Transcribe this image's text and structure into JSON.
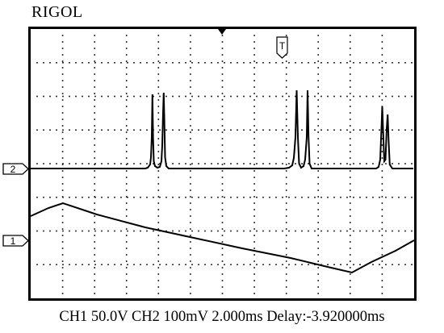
{
  "brand": "RIGOL",
  "channels": {
    "ch1_marker": "1",
    "ch2_marker": "2",
    "trigger_marker": "T"
  },
  "status": {
    "ch1_scale": "CH1 50.0V",
    "ch2_scale": "CH2 100mV",
    "timebase": "2.000ms",
    "delay": "Delay:-3.920000ms"
  },
  "colors": {
    "background": "#ffffff",
    "grid": "#000000",
    "trace": "#000000"
  }
}
